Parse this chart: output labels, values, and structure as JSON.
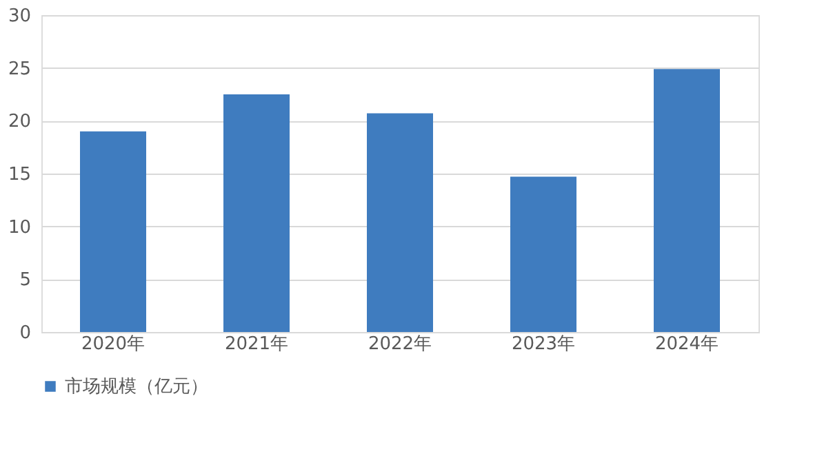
{
  "chart_data": {
    "type": "bar",
    "categories": [
      "2020年",
      "2021年",
      "2022年",
      "2023年",
      "2024年"
    ],
    "series": [
      {
        "name": "市场规模（亿元）",
        "color": "#3f7cbf",
        "values": [
          19.0,
          22.5,
          20.7,
          14.7,
          24.9
        ]
      }
    ],
    "ylim": [
      0,
      30
    ],
    "yticks": [
      0,
      5,
      10,
      15,
      20,
      25,
      30
    ],
    "grid": "y",
    "legend": "bottom"
  }
}
